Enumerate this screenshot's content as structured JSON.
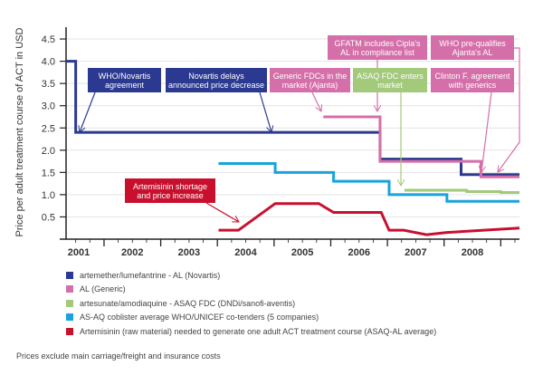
{
  "chart_data": {
    "type": "line",
    "title": "",
    "ylabel": "Price per adult treatment course of ACT in USD",
    "xlabel": "",
    "ylim": [
      0,
      4.6
    ],
    "xlim": [
      2001.33,
      2009.33
    ],
    "yticks": [
      "0.5",
      "1.0",
      "1.5",
      "2.0",
      "2.5",
      "3.0",
      "3.5",
      "4.0",
      "4.5"
    ],
    "ytick_values": [
      0.5,
      1.0,
      1.5,
      2.0,
      2.5,
      3.0,
      3.5,
      4.0,
      4.5
    ],
    "xtick_labels": [
      "2001",
      "2002",
      "2003",
      "2004",
      "2005",
      "2006",
      "2007",
      "2008"
    ],
    "grid": true,
    "series": [
      {
        "name": "artemether/lumefantrine - AL (Novartis)",
        "color": "#2b3990",
        "step": true,
        "points": [
          [
            2001.33,
            4.0
          ],
          [
            2001.5,
            4.0
          ],
          [
            2001.5,
            2.4
          ],
          [
            2006.87,
            2.4
          ],
          [
            2006.87,
            1.8
          ],
          [
            2008.3,
            1.8
          ],
          [
            2008.3,
            1.45
          ],
          [
            2009.33,
            1.45
          ]
        ]
      },
      {
        "name": "AL (Generic)",
        "color": "#d46fa9",
        "step": true,
        "points": [
          [
            2005.87,
            2.75
          ],
          [
            2006.87,
            2.75
          ],
          [
            2006.87,
            1.75
          ],
          [
            2008.65,
            1.75
          ],
          [
            2008.65,
            1.4
          ],
          [
            2009.33,
            1.4
          ]
        ]
      },
      {
        "name": "artesunate/amodiaquine - ASAQ FDC (DNDi/sanofi-aventis)",
        "color": "#a3c97b",
        "step": true,
        "points": [
          [
            2007.3,
            1.1
          ],
          [
            2008.4,
            1.1
          ],
          [
            2008.4,
            1.07
          ],
          [
            2009.0,
            1.07
          ],
          [
            2009.0,
            1.05
          ],
          [
            2009.33,
            1.05
          ]
        ]
      },
      {
        "name": "AS-AQ coblister average WHO/UNICEF co-tenders (5 companies)",
        "color": "#1aa3dd",
        "step": true,
        "points": [
          [
            2004.02,
            1.7
          ],
          [
            2005.02,
            1.7
          ],
          [
            2005.02,
            1.5
          ],
          [
            2006.05,
            1.5
          ],
          [
            2006.05,
            1.3
          ],
          [
            2007.03,
            1.3
          ],
          [
            2007.03,
            1.0
          ],
          [
            2008.05,
            1.0
          ],
          [
            2008.05,
            0.85
          ],
          [
            2009.33,
            0.85
          ]
        ]
      },
      {
        "name": "Artemisinin (raw material) needed to generate one adult ACT treatment course (ASAQ-AL average)",
        "color": "#c8102e",
        "step": false,
        "points": [
          [
            2004.02,
            0.2
          ],
          [
            2004.37,
            0.2
          ],
          [
            2005.02,
            0.8
          ],
          [
            2005.79,
            0.8
          ],
          [
            2006.05,
            0.6
          ],
          [
            2006.89,
            0.6
          ],
          [
            2007.03,
            0.2
          ],
          [
            2007.29,
            0.2
          ],
          [
            2007.69,
            0.1
          ],
          [
            2008.05,
            0.15
          ],
          [
            2009.33,
            0.25
          ]
        ]
      }
    ],
    "annotations": [
      {
        "text": "WHO/Novartis agreement",
        "color": "#2b3990"
      },
      {
        "text": "Novartis delays announced price decrease",
        "color": "#2b3990"
      },
      {
        "text": "Generic FDCs in the market (Ajanta)",
        "color": "#d46fa9"
      },
      {
        "text": "GFATM includes Cipla's AL in compliance list",
        "color": "#d46fa9"
      },
      {
        "text": "ASAQ FDC enters market",
        "color": "#a3c97b"
      },
      {
        "text": "WHO pre-qualifies Ajanta's AL",
        "color": "#d46fa9"
      },
      {
        "text": "Clinton F. agreement with generics",
        "color": "#d46fa9"
      },
      {
        "text": "Artemisinin shortage and price increase",
        "color": "#c8102e"
      }
    ],
    "legend_position": "bottom-left"
  },
  "footnote": "Prices exclude main carriage/freight and insurance costs"
}
